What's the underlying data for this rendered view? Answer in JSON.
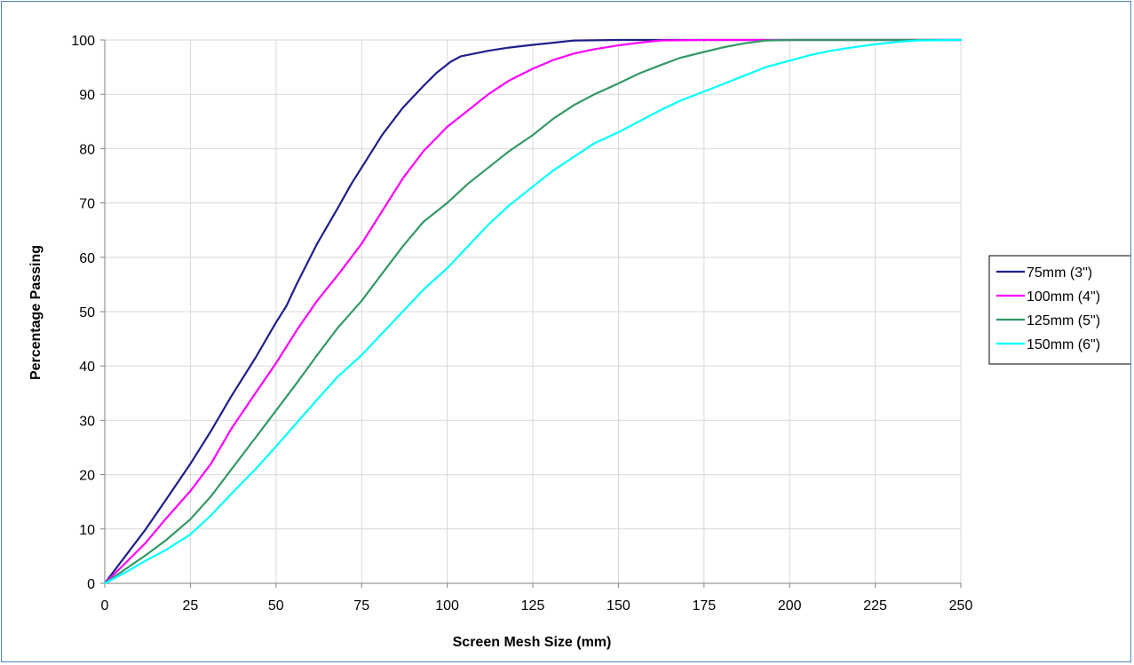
{
  "chart_data": {
    "type": "line",
    "title": "",
    "xlabel": "Screen Mesh Size (mm)",
    "ylabel": "Percentage Passing",
    "xlim": [
      0,
      250
    ],
    "ylim": [
      0,
      100
    ],
    "xticks": [
      0,
      25,
      50,
      75,
      100,
      125,
      150,
      175,
      200,
      225,
      250
    ],
    "yticks": [
      0,
      10,
      20,
      30,
      40,
      50,
      60,
      70,
      80,
      90,
      100
    ],
    "x_tick_labels": [
      "0",
      "25",
      "50",
      "75",
      "100",
      "125",
      "150",
      "175",
      "200",
      "225",
      "250"
    ],
    "y_tick_labels": [
      "0",
      "10",
      "20",
      "30",
      "40",
      "50",
      "60",
      "70",
      "80",
      "90",
      "100"
    ],
    "grid": true,
    "legend_position": "right",
    "series": [
      {
        "name": "75mm (3\")",
        "color": "#1f1f8c",
        "points": [
          [
            0,
            0
          ],
          [
            6,
            5
          ],
          [
            12,
            10
          ],
          [
            18,
            15.5
          ],
          [
            25,
            22
          ],
          [
            31,
            28
          ],
          [
            37,
            34.5
          ],
          [
            44,
            41.5
          ],
          [
            50,
            48
          ],
          [
            53,
            51
          ],
          [
            56,
            55
          ],
          [
            62,
            62.5
          ],
          [
            68,
            69
          ],
          [
            72,
            73.5
          ],
          [
            75,
            76.5
          ],
          [
            81,
            82.5
          ],
          [
            87,
            87.5
          ],
          [
            93,
            91.5
          ],
          [
            97,
            94
          ],
          [
            101,
            96
          ],
          [
            104,
            97
          ],
          [
            108,
            97.5
          ],
          [
            112,
            98
          ],
          [
            118,
            98.6
          ],
          [
            125,
            99.1
          ],
          [
            131,
            99.5
          ],
          [
            137,
            99.9
          ],
          [
            150,
            100
          ],
          [
            175,
            100
          ],
          [
            200,
            100
          ],
          [
            225,
            100
          ],
          [
            250,
            100
          ]
        ]
      },
      {
        "name": "100mm (4\")",
        "color": "#ff00ff",
        "points": [
          [
            0,
            0
          ],
          [
            6,
            3.7
          ],
          [
            12,
            7.5
          ],
          [
            18,
            12
          ],
          [
            25,
            17
          ],
          [
            31,
            22
          ],
          [
            37,
            28.5
          ],
          [
            44,
            35
          ],
          [
            50,
            40.5
          ],
          [
            56,
            46.5
          ],
          [
            62,
            52
          ],
          [
            69,
            57.5
          ],
          [
            75,
            62.5
          ],
          [
            81,
            68.5
          ],
          [
            87,
            74.5
          ],
          [
            93,
            79.5
          ],
          [
            100,
            84
          ],
          [
            106,
            87
          ],
          [
            112,
            90
          ],
          [
            118,
            92.5
          ],
          [
            125,
            94.7
          ],
          [
            131,
            96.3
          ],
          [
            137,
            97.5
          ],
          [
            143,
            98.3
          ],
          [
            150,
            99
          ],
          [
            156,
            99.5
          ],
          [
            162,
            99.9
          ],
          [
            175,
            100
          ],
          [
            200,
            100
          ],
          [
            225,
            100
          ],
          [
            250,
            100
          ]
        ]
      },
      {
        "name": "125mm (5\")",
        "color": "#339966",
        "points": [
          [
            0,
            0
          ],
          [
            6,
            2.6
          ],
          [
            12,
            5.2
          ],
          [
            18,
            8
          ],
          [
            25,
            11.8
          ],
          [
            31,
            16
          ],
          [
            37,
            21
          ],
          [
            44,
            26.8
          ],
          [
            50,
            31.8
          ],
          [
            56,
            36.8
          ],
          [
            62,
            42
          ],
          [
            68,
            47
          ],
          [
            75,
            52
          ],
          [
            81,
            57
          ],
          [
            87,
            62
          ],
          [
            93,
            66.5
          ],
          [
            100,
            70
          ],
          [
            106,
            73.5
          ],
          [
            112,
            76.5
          ],
          [
            118,
            79.5
          ],
          [
            125,
            82.5
          ],
          [
            131,
            85.5
          ],
          [
            137,
            88
          ],
          [
            143,
            90
          ],
          [
            150,
            92
          ],
          [
            156,
            93.8
          ],
          [
            162,
            95.3
          ],
          [
            168,
            96.7
          ],
          [
            175,
            97.8
          ],
          [
            181,
            98.7
          ],
          [
            187,
            99.4
          ],
          [
            193,
            99.9
          ],
          [
            200,
            100
          ],
          [
            225,
            100
          ],
          [
            250,
            100
          ]
        ]
      },
      {
        "name": "150mm (6\")",
        "color": "#00ffff",
        "points": [
          [
            0,
            0
          ],
          [
            6,
            2
          ],
          [
            12,
            4.2
          ],
          [
            18,
            6.2
          ],
          [
            25,
            9
          ],
          [
            31,
            12.5
          ],
          [
            37,
            16.5
          ],
          [
            44,
            21
          ],
          [
            50,
            25.2
          ],
          [
            56,
            29.5
          ],
          [
            62,
            33.8
          ],
          [
            68,
            38
          ],
          [
            75,
            42
          ],
          [
            81,
            46
          ],
          [
            87,
            50
          ],
          [
            93,
            54
          ],
          [
            100,
            58
          ],
          [
            106,
            62
          ],
          [
            112,
            66
          ],
          [
            118,
            69.5
          ],
          [
            125,
            73
          ],
          [
            131,
            76
          ],
          [
            137,
            78.5
          ],
          [
            143,
            81
          ],
          [
            150,
            83
          ],
          [
            156,
            85
          ],
          [
            162,
            87
          ],
          [
            168,
            88.8
          ],
          [
            175,
            90.5
          ],
          [
            181,
            92
          ],
          [
            187,
            93.5
          ],
          [
            193,
            95
          ],
          [
            200,
            96.2
          ],
          [
            206,
            97.2
          ],
          [
            212,
            98
          ],
          [
            218,
            98.6
          ],
          [
            225,
            99.2
          ],
          [
            231,
            99.6
          ],
          [
            237,
            99.9
          ],
          [
            250,
            100
          ]
        ]
      }
    ]
  }
}
